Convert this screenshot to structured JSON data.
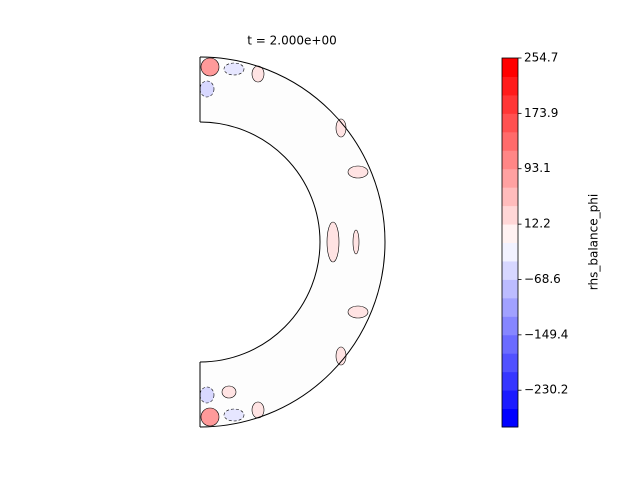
{
  "chart_data": {
    "type": "contour",
    "title": "t = 2.000e+00",
    "colorbar_label": "rhs_balance_phi",
    "cmap": "bwr",
    "clim": [
      -283.9,
      254.7
    ],
    "levels": 20,
    "cticks": [
      {
        "value": -230.2,
        "label": "−230.2"
      },
      {
        "value": -149.4,
        "label": "−149.4"
      },
      {
        "value": -68.6,
        "label": "−68.6"
      },
      12.2,
      93.1,
      173.9,
      254.7
    ]
  }
}
